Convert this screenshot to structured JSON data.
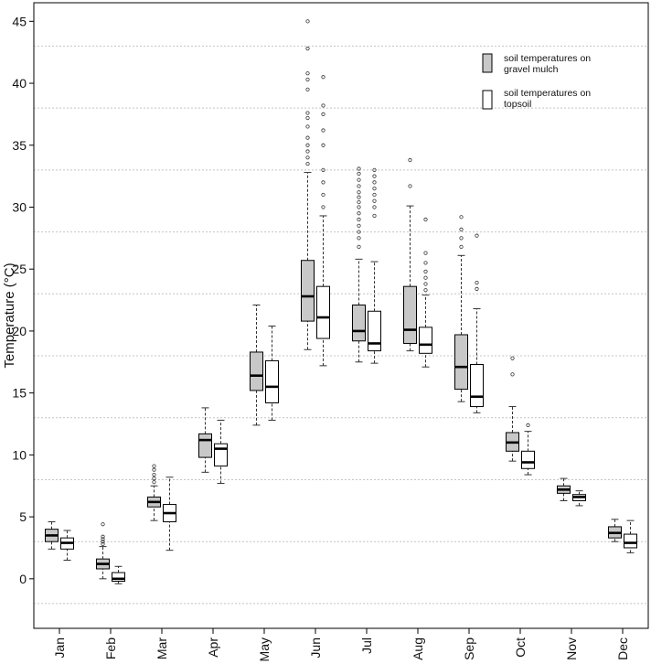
{
  "chart_data": {
    "type": "boxplot",
    "title": "",
    "xlabel": "",
    "ylabel": "Temperature (°C)",
    "ylim": [
      -4,
      46.5
    ],
    "y_ticks": [
      0,
      5,
      10,
      15,
      20,
      25,
      30,
      35,
      40,
      45
    ],
    "gridlines_y": [
      -2,
      3,
      8,
      13,
      18,
      23,
      28,
      33,
      38,
      43
    ],
    "categories": [
      "Jan",
      "Feb",
      "Mar",
      "Apr",
      "May",
      "Jun",
      "Jul",
      "Aug",
      "Sep",
      "Oct",
      "Nov",
      "Dec"
    ],
    "legend": {
      "position": "top-right",
      "entries": [
        {
          "series": "gravel",
          "line1": "soil temperatures on",
          "line2": "gravel mulch"
        },
        {
          "series": "topsoil",
          "line1": "soil temperatures on",
          "line2": "topsoil"
        }
      ]
    },
    "series": [
      {
        "name": "soil temperatures on gravel mulch",
        "fill": "#c8c8c8",
        "boxes": [
          {
            "lw": 2.4,
            "q1": 3.0,
            "median": 3.5,
            "q3": 4.0,
            "uw": 4.6,
            "outliers": []
          },
          {
            "lw": 0.0,
            "q1": 0.8,
            "median": 1.2,
            "q3": 1.6,
            "uw": 2.6,
            "outliers": [
              2.8,
              3.0,
              3.2,
              3.4,
              4.4
            ]
          },
          {
            "lw": 4.7,
            "q1": 5.8,
            "median": 6.2,
            "q3": 6.6,
            "uw": 7.5,
            "outliers": [
              7.8,
              8.1,
              8.4,
              8.8,
              9.1
            ]
          },
          {
            "lw": 8.6,
            "q1": 9.8,
            "median": 11.2,
            "q3": 11.7,
            "uw": 13.8,
            "outliers": []
          },
          {
            "lw": 12.4,
            "q1": 15.2,
            "median": 16.4,
            "q3": 18.3,
            "uw": 22.1,
            "outliers": []
          },
          {
            "lw": 18.5,
            "q1": 20.8,
            "median": 22.8,
            "q3": 25.7,
            "uw": 32.8,
            "outliers": [
              33.5,
              34.0,
              34.5,
              35.0,
              35.6,
              36.5,
              37.2,
              37.6,
              39.5,
              40.3,
              40.8,
              42.8,
              45.0
            ]
          },
          {
            "lw": 17.5,
            "q1": 19.2,
            "median": 20.0,
            "q3": 22.1,
            "uw": 25.8,
            "outliers": [
              26.8,
              27.5,
              28.0,
              28.5,
              29.0,
              29.5,
              30.0,
              30.4,
              30.8,
              31.2,
              31.7,
              32.2,
              32.7,
              33.1
            ]
          },
          {
            "lw": 18.4,
            "q1": 19.0,
            "median": 20.1,
            "q3": 23.6,
            "uw": 30.1,
            "outliers": [
              31.7,
              33.8
            ]
          },
          {
            "lw": 14.3,
            "q1": 15.3,
            "median": 17.1,
            "q3": 19.7,
            "uw": 26.1,
            "outliers": [
              26.8,
              27.5,
              28.2,
              29.2
            ]
          },
          {
            "lw": 9.5,
            "q1": 10.3,
            "median": 11.0,
            "q3": 11.8,
            "uw": 13.9,
            "outliers": [
              16.5,
              17.8
            ]
          },
          {
            "lw": 6.3,
            "q1": 6.9,
            "median": 7.2,
            "q3": 7.5,
            "uw": 8.1,
            "outliers": []
          },
          {
            "lw": 3.0,
            "q1": 3.3,
            "median": 3.7,
            "q3": 4.2,
            "uw": 4.8,
            "outliers": []
          }
        ]
      },
      {
        "name": "soil temperatures on topsoil",
        "fill": "#ffffff",
        "boxes": [
          {
            "lw": 1.5,
            "q1": 2.4,
            "median": 2.9,
            "q3": 3.3,
            "uw": 3.9,
            "outliers": []
          },
          {
            "lw": -0.4,
            "q1": -0.2,
            "median": 0.0,
            "q3": 0.5,
            "uw": 1.0,
            "outliers": []
          },
          {
            "lw": 2.3,
            "q1": 4.6,
            "median": 5.3,
            "q3": 6.0,
            "uw": 8.2,
            "outliers": []
          },
          {
            "lw": 7.7,
            "q1": 9.1,
            "median": 10.5,
            "q3": 10.9,
            "uw": 12.8,
            "outliers": []
          },
          {
            "lw": 12.8,
            "q1": 14.2,
            "median": 15.5,
            "q3": 17.6,
            "uw": 20.4,
            "outliers": []
          },
          {
            "lw": 17.2,
            "q1": 19.4,
            "median": 21.1,
            "q3": 23.6,
            "uw": 29.3,
            "outliers": [
              30.0,
              31.0,
              32.0,
              33.0,
              35.0,
              36.2,
              37.5,
              38.2,
              40.5
            ]
          },
          {
            "lw": 17.4,
            "q1": 18.4,
            "median": 19.0,
            "q3": 21.6,
            "uw": 25.6,
            "outliers": [
              29.3,
              30.0,
              30.5,
              31.0,
              31.5,
              32.0,
              32.5,
              33.0
            ]
          },
          {
            "lw": 17.1,
            "q1": 18.2,
            "median": 18.9,
            "q3": 20.3,
            "uw": 22.9,
            "outliers": [
              23.3,
              23.8,
              24.3,
              24.8,
              25.5,
              26.3,
              29.0
            ]
          },
          {
            "lw": 13.4,
            "q1": 13.9,
            "median": 14.7,
            "q3": 17.3,
            "uw": 21.8,
            "outliers": [
              23.4,
              23.9,
              27.7
            ]
          },
          {
            "lw": 8.4,
            "q1": 8.9,
            "median": 9.4,
            "q3": 10.3,
            "uw": 11.9,
            "outliers": [
              12.4
            ]
          },
          {
            "lw": 5.9,
            "q1": 6.3,
            "median": 6.6,
            "q3": 6.8,
            "uw": 7.1,
            "outliers": []
          },
          {
            "lw": 2.1,
            "q1": 2.5,
            "median": 2.9,
            "q3": 3.6,
            "uw": 4.7,
            "outliers": []
          }
        ]
      }
    ]
  }
}
